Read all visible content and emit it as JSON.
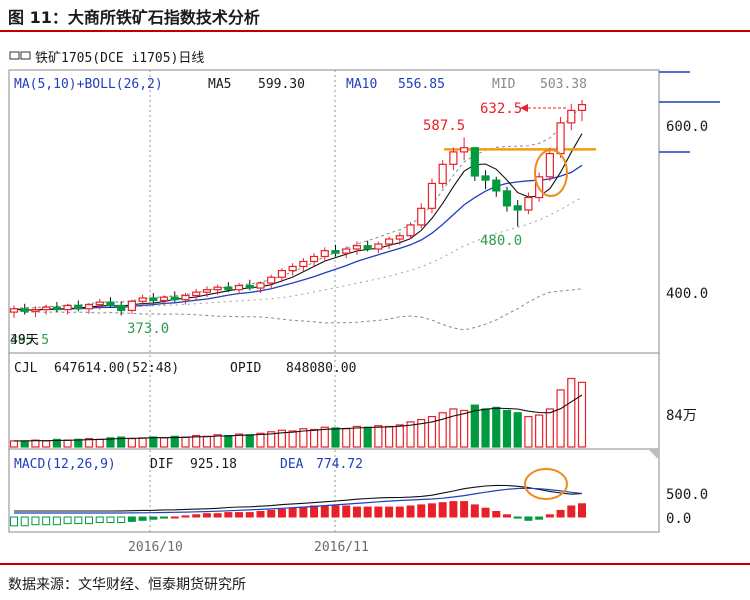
{
  "figure_title": "图 11：大商所铁矿石指数技术分析",
  "source": "数据来源：文华财经、恒泰期货研究所",
  "instrument": "铁矿1705(DCE i1705)日线",
  "indicator_line": {
    "name": "MA(5,10)+BOLL(26,2)",
    "ma5_label": "MA5",
    "ma5_value": "599.30",
    "ma10_label": "MA10",
    "ma10_value": "556.85",
    "mid_label": "MID",
    "mid_value": "503.38"
  },
  "volume_line": {
    "cjl_label": "CJL",
    "cjl_value": "647614.00(52:48)",
    "opid_label": "OPID",
    "opid_value": "848080.00"
  },
  "macd_line": {
    "name": "MACD(12,26,9)",
    "dif_label": "DIF",
    "dif_value": "925.18",
    "dea_label": "DEA",
    "dea_value": "774.72"
  },
  "colors": {
    "up": "#e8202a",
    "down": "#009a3e",
    "resistance": "#f39c12",
    "highlight_circle": "#f08a1c",
    "rule": "#c00000"
  },
  "chart_data": {
    "type": "candlestick",
    "x_tick_labels": [
      "2016/10",
      "2016/11"
    ],
    "price_ticks": [
      "400.0",
      "600.0"
    ],
    "price_annotations": {
      "high": "632.5",
      "peak": "587.5",
      "pullback_low": "480.0",
      "bottom": "373.0",
      "left_edge": "49天",
      "left_edge_value": "385.5"
    },
    "resistance_level": 573,
    "volume_tick": "84万",
    "macd_ticks": [
      "500.0",
      "0.0"
    ],
    "candles": [
      {
        "o": 377,
        "h": 385,
        "l": 370,
        "c": 381
      },
      {
        "o": 381,
        "h": 387,
        "l": 374,
        "c": 378
      },
      {
        "o": 378,
        "h": 384,
        "l": 371,
        "c": 380
      },
      {
        "o": 380,
        "h": 386,
        "l": 374,
        "c": 383
      },
      {
        "o": 383,
        "h": 389,
        "l": 377,
        "c": 380
      },
      {
        "o": 380,
        "h": 387,
        "l": 374,
        "c": 385
      },
      {
        "o": 385,
        "h": 391,
        "l": 378,
        "c": 381
      },
      {
        "o": 381,
        "h": 388,
        "l": 375,
        "c": 386
      },
      {
        "o": 386,
        "h": 393,
        "l": 380,
        "c": 389
      },
      {
        "o": 389,
        "h": 395,
        "l": 382,
        "c": 385
      },
      {
        "o": 385,
        "h": 390,
        "l": 373,
        "c": 379
      },
      {
        "o": 379,
        "h": 392,
        "l": 375,
        "c": 390
      },
      {
        "o": 390,
        "h": 398,
        "l": 384,
        "c": 394
      },
      {
        "o": 394,
        "h": 400,
        "l": 388,
        "c": 391
      },
      {
        "o": 391,
        "h": 397,
        "l": 385,
        "c": 395
      },
      {
        "o": 395,
        "h": 402,
        "l": 389,
        "c": 392
      },
      {
        "o": 392,
        "h": 400,
        "l": 386,
        "c": 397
      },
      {
        "o": 397,
        "h": 405,
        "l": 391,
        "c": 401
      },
      {
        "o": 401,
        "h": 408,
        "l": 395,
        "c": 404
      },
      {
        "o": 404,
        "h": 410,
        "l": 398,
        "c": 407
      },
      {
        "o": 407,
        "h": 413,
        "l": 401,
        "c": 404
      },
      {
        "o": 404,
        "h": 412,
        "l": 399,
        "c": 409
      },
      {
        "o": 409,
        "h": 416,
        "l": 403,
        "c": 406
      },
      {
        "o": 406,
        "h": 414,
        "l": 400,
        "c": 412
      },
      {
        "o": 412,
        "h": 422,
        "l": 406,
        "c": 419
      },
      {
        "o": 419,
        "h": 430,
        "l": 413,
        "c": 427
      },
      {
        "o": 427,
        "h": 436,
        "l": 421,
        "c": 432
      },
      {
        "o": 432,
        "h": 442,
        "l": 426,
        "c": 438
      },
      {
        "o": 438,
        "h": 448,
        "l": 432,
        "c": 444
      },
      {
        "o": 444,
        "h": 455,
        "l": 438,
        "c": 451
      },
      {
        "o": 451,
        "h": 458,
        "l": 444,
        "c": 448
      },
      {
        "o": 448,
        "h": 456,
        "l": 442,
        "c": 453
      },
      {
        "o": 453,
        "h": 462,
        "l": 446,
        "c": 457
      },
      {
        "o": 457,
        "h": 463,
        "l": 450,
        "c": 453
      },
      {
        "o": 453,
        "h": 462,
        "l": 448,
        "c": 459
      },
      {
        "o": 459,
        "h": 468,
        "l": 453,
        "c": 465
      },
      {
        "o": 465,
        "h": 473,
        "l": 458,
        "c": 469
      },
      {
        "o": 469,
        "h": 485,
        "l": 465,
        "c": 482
      },
      {
        "o": 482,
        "h": 508,
        "l": 478,
        "c": 502
      },
      {
        "o": 502,
        "h": 538,
        "l": 496,
        "c": 532
      },
      {
        "o": 532,
        "h": 560,
        "l": 526,
        "c": 555
      },
      {
        "o": 555,
        "h": 575,
        "l": 548,
        "c": 570
      },
      {
        "o": 570,
        "h": 587.5,
        "l": 560,
        "c": 575
      },
      {
        "o": 575,
        "h": 576,
        "l": 535,
        "c": 541
      },
      {
        "o": 541,
        "h": 548,
        "l": 525,
        "c": 536
      },
      {
        "o": 536,
        "h": 540,
        "l": 516,
        "c": 523
      },
      {
        "o": 523,
        "h": 528,
        "l": 498,
        "c": 505
      },
      {
        "o": 505,
        "h": 512,
        "l": 480,
        "c": 500
      },
      {
        "o": 500,
        "h": 521,
        "l": 495,
        "c": 515
      },
      {
        "o": 515,
        "h": 545,
        "l": 510,
        "c": 540
      },
      {
        "o": 540,
        "h": 575,
        "l": 535,
        "c": 568
      },
      {
        "o": 568,
        "h": 612,
        "l": 563,
        "c": 605
      },
      {
        "o": 605,
        "h": 628,
        "l": 596,
        "c": 620
      },
      {
        "o": 620,
        "h": 632.5,
        "l": 607,
        "c": 627
      }
    ],
    "volume": [
      8,
      8,
      9,
      8,
      10,
      9,
      10,
      11,
      10,
      12,
      13,
      11,
      12,
      13,
      12,
      14,
      13,
      15,
      14,
      16,
      15,
      17,
      16,
      18,
      20,
      22,
      21,
      24,
      23,
      26,
      25,
      24,
      27,
      26,
      28,
      27,
      29,
      33,
      36,
      40,
      45,
      50,
      48,
      55,
      50,
      52,
      48,
      45,
      40,
      42,
      50,
      75,
      90,
      85
    ],
    "volume_up": [
      true,
      false,
      true,
      true,
      false,
      true,
      false,
      true,
      true,
      false,
      false,
      true,
      true,
      false,
      true,
      false,
      true,
      true,
      true,
      true,
      false,
      true,
      false,
      true,
      true,
      true,
      true,
      true,
      true,
      true,
      false,
      true,
      true,
      false,
      true,
      true,
      true,
      true,
      true,
      true,
      true,
      true,
      true,
      false,
      false,
      false,
      false,
      false,
      true,
      true,
      true,
      true,
      true,
      true
    ],
    "macd_hist": [
      -8,
      -8,
      -7,
      -7,
      -7,
      -6,
      -6,
      -6,
      -5,
      -5,
      -5,
      -4,
      -3,
      -2,
      -1,
      0,
      1,
      2,
      3,
      3,
      4,
      4,
      4,
      5,
      6,
      7,
      8,
      9,
      10,
      10,
      10,
      10,
      9,
      9,
      9,
      9,
      9,
      10,
      11,
      12,
      13,
      14,
      14,
      11,
      8,
      5,
      2,
      -1,
      -3,
      -2,
      2,
      6,
      10,
      12
    ]
  }
}
